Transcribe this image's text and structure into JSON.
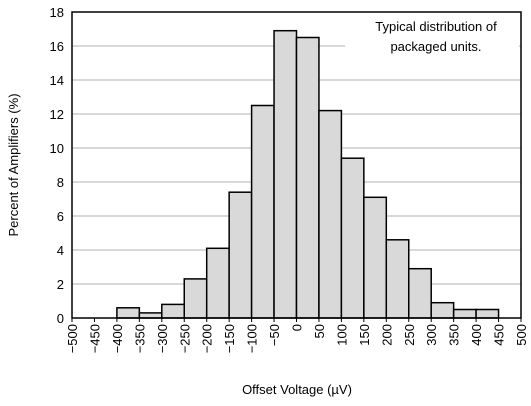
{
  "chart_data": {
    "type": "histogram",
    "xlabel": "Offset Voltage (µV)",
    "ylabel": "Percent of Amplifiers (%)",
    "annotation": [
      "Typical distribution of",
      "packaged units."
    ],
    "bins": [
      -400,
      -350,
      -300,
      -250,
      -200,
      -150,
      -100,
      -50,
      0,
      50,
      100,
      150,
      200,
      250,
      300,
      350,
      400,
      450
    ],
    "counts": [
      0.6,
      0.3,
      0.8,
      2.3,
      4.1,
      7.4,
      12.5,
      16.9,
      16.5,
      12.2,
      9.4,
      7.1,
      4.6,
      2.9,
      0.9,
      0.5,
      0.5
    ],
    "color": "#d9d9d9",
    "xlim": [
      -500,
      500
    ],
    "xticks": [
      {
        "value": -500,
        "label": "−500"
      },
      {
        "value": -450,
        "label": "−450"
      },
      {
        "value": -400,
        "label": "−400"
      },
      {
        "value": -350,
        "label": "−350"
      },
      {
        "value": -300,
        "label": "−300"
      },
      {
        "value": -250,
        "label": "−250"
      },
      {
        "value": -200,
        "label": "−200"
      },
      {
        "value": -150,
        "label": "−150"
      },
      {
        "value": -100,
        "label": "−100"
      },
      {
        "value": -50,
        "label": "−50"
      },
      0,
      50,
      100,
      150,
      200,
      250,
      300,
      350,
      400,
      450,
      500
    ],
    "ylim": [
      0,
      18
    ],
    "yticks": [
      0,
      2,
      4,
      6,
      8,
      10,
      12,
      14,
      16,
      18
    ],
    "grid": true
  }
}
